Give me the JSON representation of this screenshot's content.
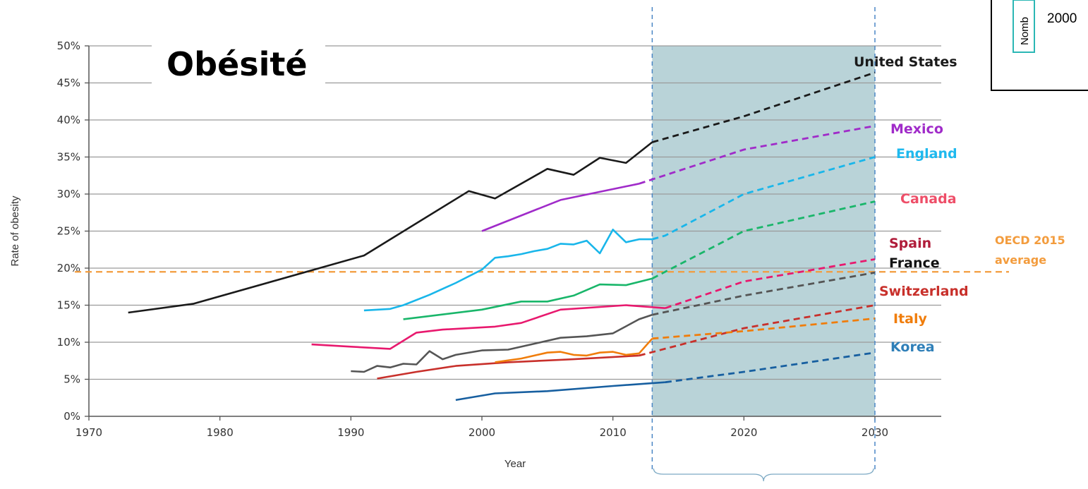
{
  "overlay_title": "Obésité",
  "oecd_label_line1": "OECD 2015",
  "oecd_label_line2": "average",
  "corner_box_text": "Nomb",
  "corner_text": "2000",
  "colors": {
    "projection_shade": "#b9d3d8",
    "grid": "#9a9a9a",
    "oecd_line": "#f39c3d",
    "vertical_marker": "#4a86c5"
  },
  "chart_data": {
    "type": "line",
    "xlabel": "Year",
    "ylabel": "Rate of obesity",
    "xlim": [
      1970,
      2035
    ],
    "ylim": [
      0,
      50
    ],
    "x_ticks": [
      "1970",
      "1980",
      "1990",
      "2000",
      "2010",
      "2020",
      "2030"
    ],
    "y_ticks": [
      "0%",
      "5%",
      "10%",
      "15%",
      "20%",
      "25%",
      "30%",
      "35%",
      "40%",
      "45%",
      "50%"
    ],
    "grid": true,
    "projection_range": [
      2013,
      2030
    ],
    "oecd_average_2015": 19.5,
    "series": [
      {
        "name": "United States",
        "color": "#1a1a1a",
        "actual": [
          [
            1973,
            14
          ],
          [
            1978,
            15.2
          ],
          [
            1991,
            21.7
          ],
          [
            1999,
            30.4
          ],
          [
            2001,
            29.4
          ],
          [
            2005,
            33.4
          ],
          [
            2007,
            32.6
          ],
          [
            2009,
            34.9
          ],
          [
            2011,
            34.2
          ],
          [
            2013,
            37
          ]
        ],
        "projected": [
          [
            2013,
            37
          ],
          [
            2020,
            40.5
          ],
          [
            2030,
            46.4
          ]
        ]
      },
      {
        "name": "Mexico",
        "color": "#a02bc9",
        "actual": [
          [
            2000,
            25
          ],
          [
            2006,
            29.2
          ],
          [
            2012,
            31.4
          ]
        ],
        "projected": [
          [
            2012,
            31.4
          ],
          [
            2020,
            36
          ],
          [
            2030,
            39.2
          ]
        ]
      },
      {
        "name": "England",
        "color": "#19b6ea",
        "actual": [
          [
            1991,
            14.3
          ],
          [
            1993,
            14.5
          ],
          [
            1994,
            15
          ],
          [
            1996,
            16.4
          ],
          [
            1998,
            18
          ],
          [
            2000,
            19.8
          ],
          [
            2001,
            21.4
          ],
          [
            2002,
            21.6
          ],
          [
            2003,
            21.9
          ],
          [
            2004,
            22.3
          ],
          [
            2005,
            22.6
          ],
          [
            2006,
            23.3
          ],
          [
            2007,
            23.2
          ],
          [
            2008,
            23.7
          ],
          [
            2009,
            22
          ],
          [
            2010,
            25.2
          ],
          [
            2011,
            23.5
          ],
          [
            2012,
            23.9
          ],
          [
            2013,
            23.9
          ]
        ],
        "projected": [
          [
            2013,
            23.9
          ],
          [
            2014,
            24.4
          ],
          [
            2020,
            30
          ],
          [
            2030,
            35
          ]
        ]
      },
      {
        "name": "Canada",
        "color": "#19b66a",
        "actual": [
          [
            1994,
            13.1
          ],
          [
            2000,
            14.4
          ],
          [
            2003,
            15.5
          ],
          [
            2005,
            15.5
          ],
          [
            2007,
            16.3
          ],
          [
            2009,
            17.8
          ],
          [
            2011,
            17.7
          ],
          [
            2013,
            18.6
          ]
        ],
        "projected": [
          [
            2013,
            18.6
          ],
          [
            2020,
            25
          ],
          [
            2030,
            29
          ]
        ]
      },
      {
        "name": "Spain",
        "color": "#e8196e",
        "actual": [
          [
            1987,
            9.7
          ],
          [
            1990,
            9.4
          ],
          [
            1993,
            9.1
          ],
          [
            1995,
            11.3
          ],
          [
            1997,
            11.7
          ],
          [
            2001,
            12.1
          ],
          [
            2003,
            12.6
          ],
          [
            2006,
            14.4
          ],
          [
            2011,
            15
          ],
          [
            2014,
            14.6
          ]
        ],
        "projected": [
          [
            2014,
            14.6
          ],
          [
            2020,
            18.2
          ],
          [
            2030,
            21.2
          ]
        ]
      },
      {
        "name": "France",
        "color": "#555555",
        "actual": [
          [
            1990,
            6.1
          ],
          [
            1991,
            6
          ],
          [
            1992,
            6.8
          ],
          [
            1993,
            6.6
          ],
          [
            1994,
            7.1
          ],
          [
            1995,
            7
          ],
          [
            1996,
            8.8
          ],
          [
            1997,
            7.7
          ],
          [
            1998,
            8.3
          ],
          [
            2000,
            8.9
          ],
          [
            2002,
            9
          ],
          [
            2004,
            9.8
          ],
          [
            2006,
            10.6
          ],
          [
            2008,
            10.8
          ],
          [
            2010,
            11.2
          ],
          [
            2012,
            13.1
          ],
          [
            2013,
            13.7
          ]
        ],
        "projected": [
          [
            2013,
            13.7
          ],
          [
            2020,
            16.3
          ],
          [
            2030,
            19.4
          ]
        ]
      },
      {
        "name": "Switzerland",
        "color": "#c8302b",
        "actual": [
          [
            1992,
            5.1
          ],
          [
            1995,
            6
          ],
          [
            1998,
            6.8
          ],
          [
            2002,
            7.3
          ],
          [
            2007,
            7.7
          ],
          [
            2012,
            8.2
          ]
        ],
        "projected": [
          [
            2012,
            8.2
          ],
          [
            2020,
            11.9
          ],
          [
            2030,
            15
          ]
        ]
      },
      {
        "name": "Italy",
        "color": "#f07d0b",
        "actual": [
          [
            2001,
            7.3
          ],
          [
            2003,
            7.8
          ],
          [
            2005,
            8.6
          ],
          [
            2006,
            8.7
          ],
          [
            2007,
            8.3
          ],
          [
            2008,
            8.2
          ],
          [
            2009,
            8.6
          ],
          [
            2010,
            8.7
          ],
          [
            2011,
            8.3
          ],
          [
            2012,
            8.5
          ],
          [
            2013,
            10.5
          ]
        ],
        "projected": [
          [
            2013,
            10.5
          ],
          [
            2020,
            11.5
          ],
          [
            2030,
            13.2
          ]
        ]
      },
      {
        "name": "Korea",
        "color": "#175fa0",
        "actual": [
          [
            1998,
            2.2
          ],
          [
            2001,
            3.1
          ],
          [
            2005,
            3.4
          ],
          [
            2010,
            4.1
          ],
          [
            2014,
            4.6
          ]
        ],
        "projected": [
          [
            2014,
            4.6
          ],
          [
            2020,
            6
          ],
          [
            2030,
            8.6
          ]
        ]
      }
    ]
  }
}
